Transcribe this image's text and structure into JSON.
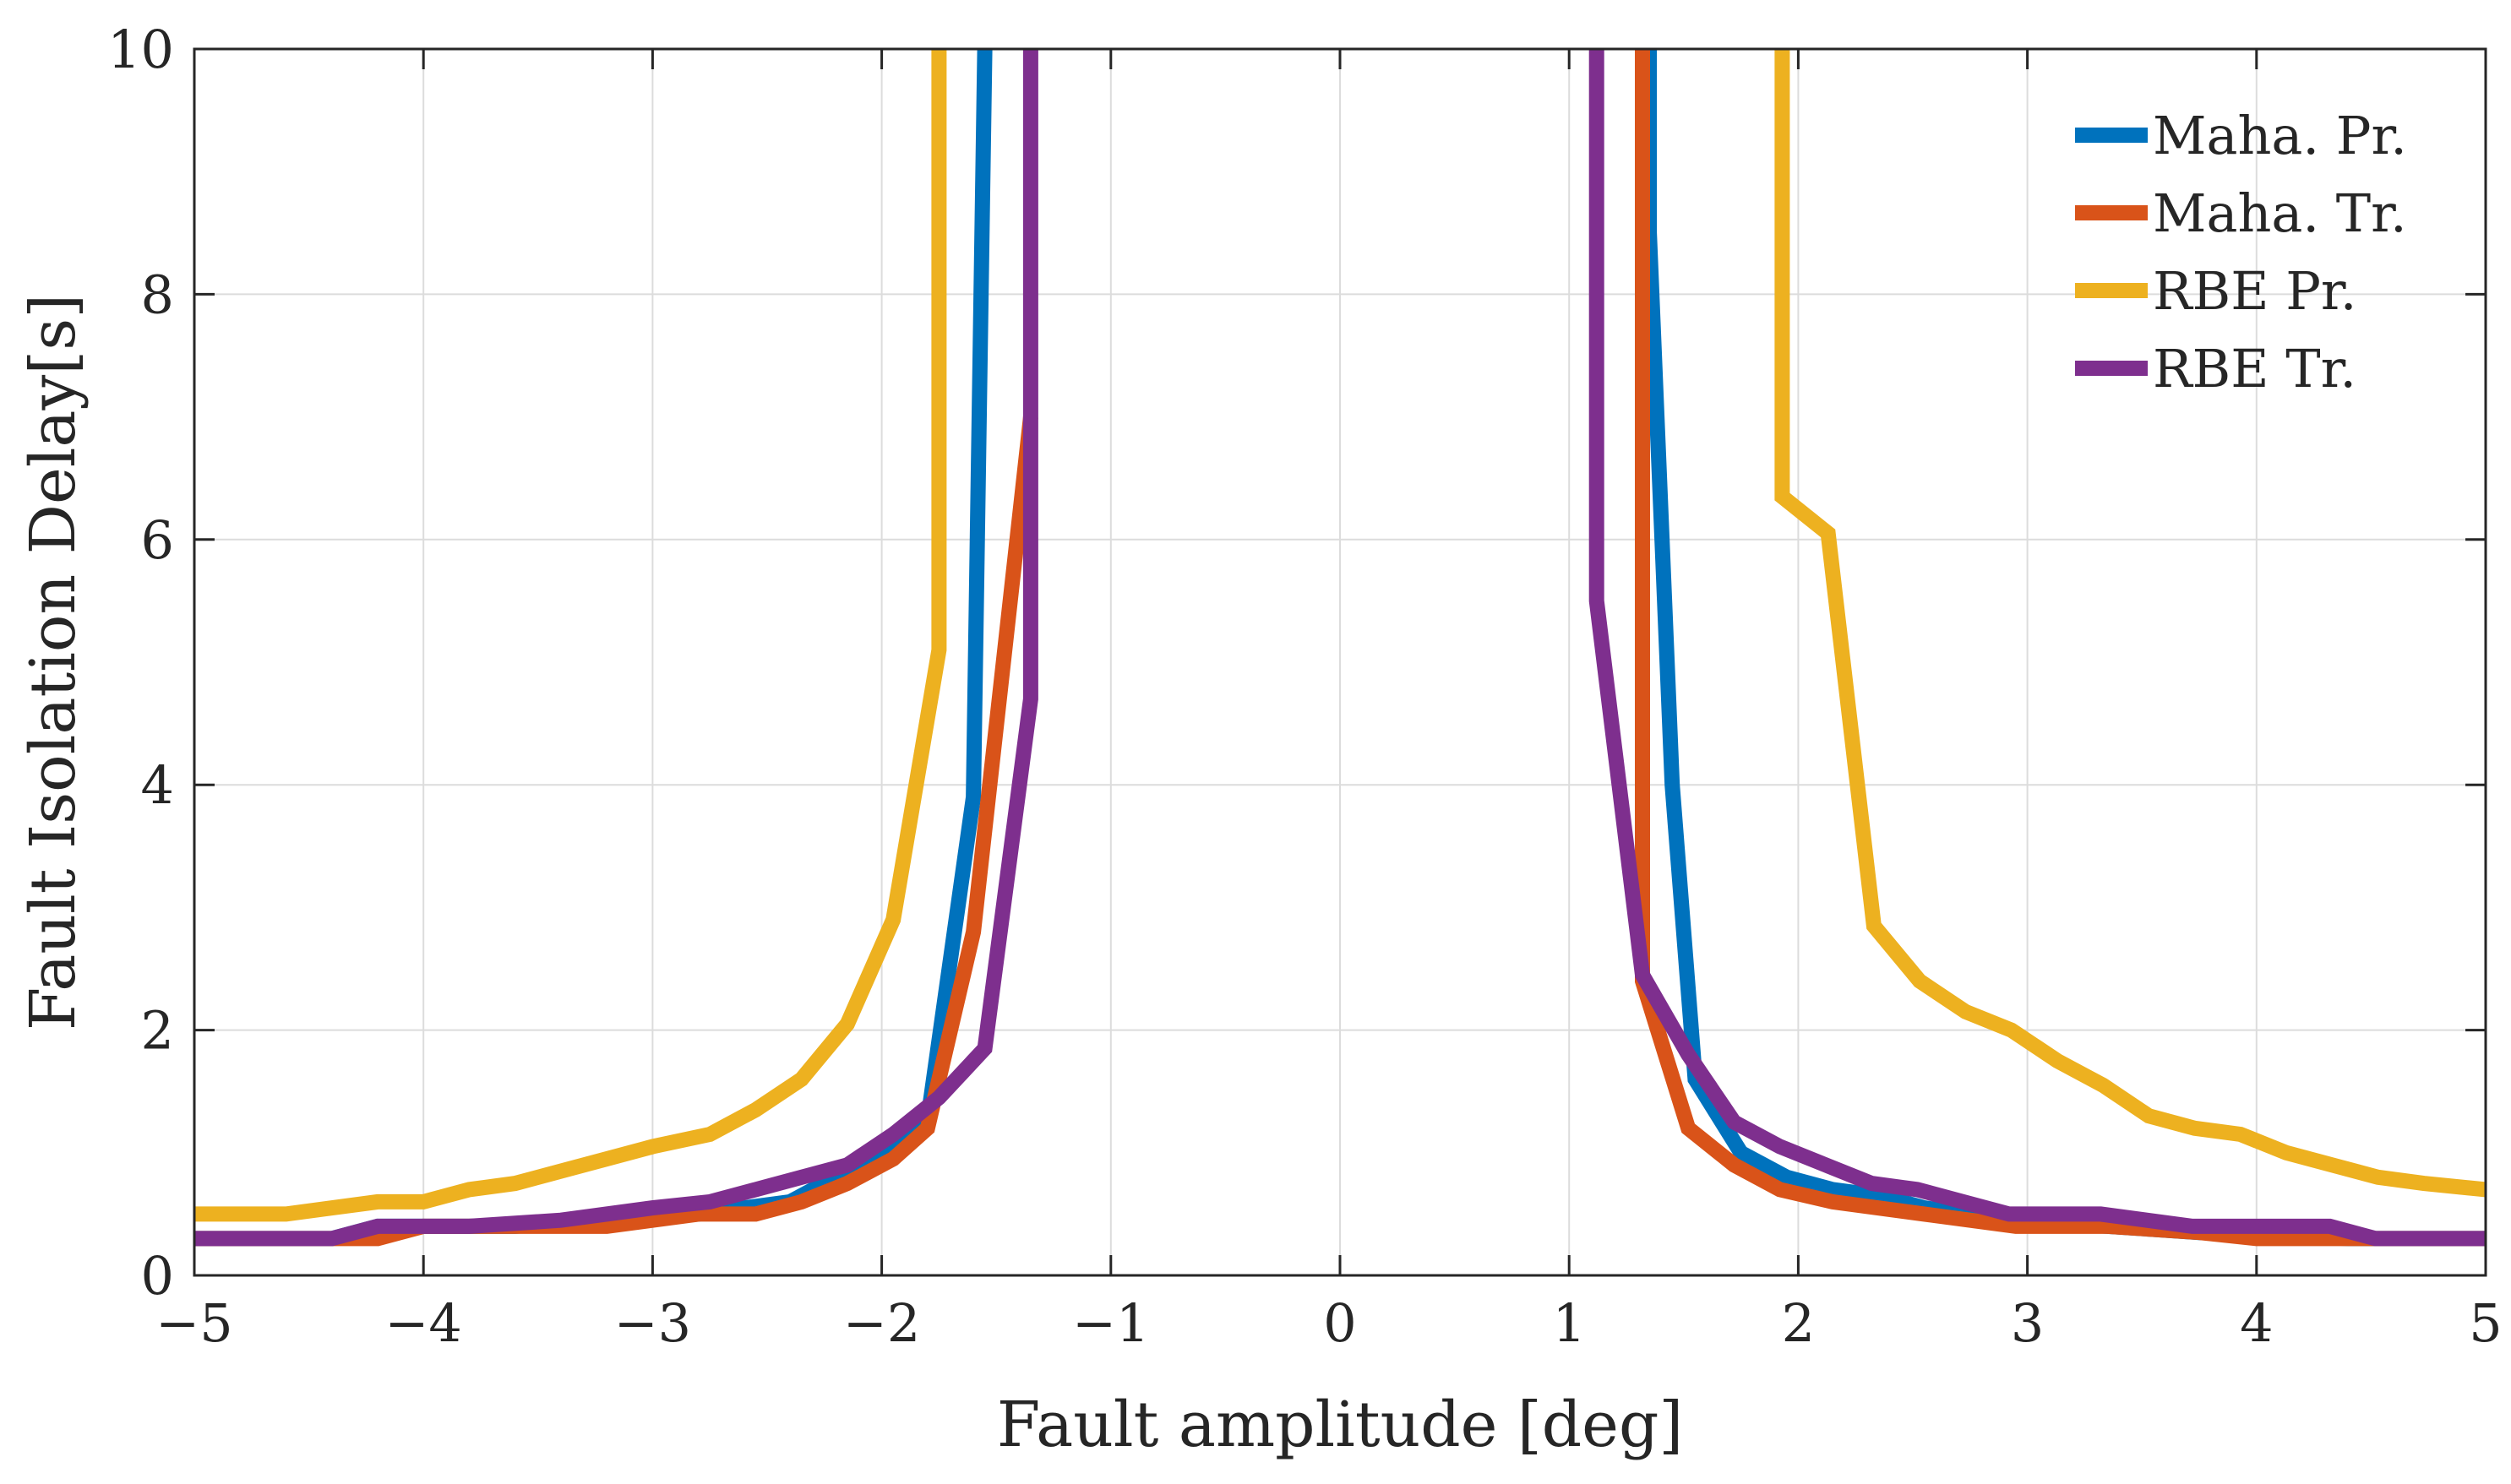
{
  "chart_data": {
    "type": "line",
    "title": "",
    "xlabel": "Fault amplitude [deg]",
    "ylabel": "Fault Isolation Delay[s]",
    "xlim": [
      -5,
      5
    ],
    "ylim": [
      0,
      10
    ],
    "xticks": [
      -5,
      -4,
      -3,
      -2,
      -1,
      0,
      1,
      2,
      3,
      4,
      5
    ],
    "xtick_labels": [
      "−5",
      "−4",
      "−3",
      "−2",
      "−1",
      "0",
      "1",
      "2",
      "3",
      "4",
      "5"
    ],
    "yticks": [
      0,
      2,
      4,
      6,
      8,
      10
    ],
    "ytick_labels": [
      "0",
      "2",
      "4",
      "6",
      "8",
      "10"
    ],
    "grid": true,
    "legend_position": "top-right",
    "series": [
      {
        "name": "Maha. Pr.",
        "color": "#0072BD",
        "segments": [
          [
            [
              -5,
              0.3
            ],
            [
              -4.4,
              0.3
            ],
            [
              -4.2,
              0.4
            ],
            [
              -3.6,
              0.4
            ],
            [
              -3.2,
              0.45
            ],
            [
              -2.8,
              0.5
            ],
            [
              -2.4,
              0.6
            ],
            [
              -2.2,
              0.8
            ],
            [
              -2.0,
              1.0
            ],
            [
              -1.8,
              1.25
            ],
            [
              -1.6,
              3.9
            ],
            [
              -1.55,
              10
            ]
          ],
          [
            [
              1.35,
              10
            ],
            [
              1.35,
              8.5
            ],
            [
              1.45,
              4.0
            ],
            [
              1.55,
              1.6
            ],
            [
              1.75,
              1.0
            ],
            [
              1.95,
              0.8
            ],
            [
              2.15,
              0.7
            ],
            [
              2.35,
              0.65
            ],
            [
              2.55,
              0.55
            ],
            [
              2.75,
              0.5
            ],
            [
              2.95,
              0.45
            ],
            [
              3.35,
              0.4
            ],
            [
              3.75,
              0.35
            ],
            [
              4.4,
              0.3
            ],
            [
              5,
              0.3
            ]
          ]
        ]
      },
      {
        "name": "Maha. Tr.",
        "color": "#D95319",
        "segments": [
          [
            [
              -5,
              0.3
            ],
            [
              -4.2,
              0.3
            ],
            [
              -4.0,
              0.4
            ],
            [
              -3.6,
              0.4
            ],
            [
              -3.2,
              0.4
            ],
            [
              -2.8,
              0.5
            ],
            [
              -2.55,
              0.5
            ],
            [
              -2.35,
              0.6
            ],
            [
              -2.15,
              0.75
            ],
            [
              -1.95,
              0.95
            ],
            [
              -1.8,
              1.2
            ],
            [
              -1.6,
              2.8
            ],
            [
              -1.35,
              7.0
            ]
          ],
          [
            [
              1.32,
              10
            ],
            [
              1.32,
              2.4
            ],
            [
              1.52,
              1.2
            ],
            [
              1.72,
              0.9
            ],
            [
              1.92,
              0.7
            ],
            [
              2.15,
              0.6
            ],
            [
              2.55,
              0.5
            ],
            [
              2.95,
              0.4
            ],
            [
              3.35,
              0.4
            ],
            [
              3.75,
              0.35
            ],
            [
              4.0,
              0.3
            ],
            [
              4.4,
              0.3
            ],
            [
              4.6,
              0.3
            ],
            [
              5,
              0.3
            ]
          ]
        ]
      },
      {
        "name": "RBE Pr.",
        "color": "#EDB120",
        "segments": [
          [
            [
              -5,
              0.5
            ],
            [
              -4.6,
              0.5
            ],
            [
              -4.2,
              0.6
            ],
            [
              -4.0,
              0.6
            ],
            [
              -3.8,
              0.7
            ],
            [
              -3.6,
              0.75
            ],
            [
              -3.4,
              0.85
            ],
            [
              -3.2,
              0.95
            ],
            [
              -3.0,
              1.05
            ],
            [
              -2.75,
              1.15
            ],
            [
              -2.55,
              1.35
            ],
            [
              -2.35,
              1.6
            ],
            [
              -2.15,
              2.05
            ],
            [
              -1.95,
              2.9
            ],
            [
              -1.75,
              5.1
            ],
            [
              -1.75,
              10
            ]
          ],
          [
            [
              1.93,
              10
            ],
            [
              1.93,
              6.35
            ],
            [
              2.13,
              6.05
            ],
            [
              2.33,
              2.85
            ],
            [
              2.53,
              2.4
            ],
            [
              2.73,
              2.15
            ],
            [
              2.93,
              2.0
            ],
            [
              3.13,
              1.75
            ],
            [
              3.33,
              1.55
            ],
            [
              3.53,
              1.3
            ],
            [
              3.73,
              1.2
            ],
            [
              3.93,
              1.15
            ],
            [
              4.13,
              1.0
            ],
            [
              4.33,
              0.9
            ],
            [
              4.53,
              0.8
            ],
            [
              4.73,
              0.75
            ],
            [
              5,
              0.7
            ]
          ]
        ]
      },
      {
        "name": "RBE Tr.",
        "color": "#7E2F8E",
        "segments": [
          [
            [
              -5,
              0.3
            ],
            [
              -4.4,
              0.3
            ],
            [
              -4.2,
              0.4
            ],
            [
              -3.8,
              0.4
            ],
            [
              -3.4,
              0.45
            ],
            [
              -3.0,
              0.55
            ],
            [
              -2.75,
              0.6
            ],
            [
              -2.55,
              0.7
            ],
            [
              -2.35,
              0.8
            ],
            [
              -2.15,
              0.9
            ],
            [
              -1.95,
              1.15
            ],
            [
              -1.75,
              1.45
            ],
            [
              -1.55,
              1.85
            ],
            [
              -1.35,
              4.7
            ],
            [
              -1.35,
              10
            ]
          ],
          [
            [
              1.12,
              10
            ],
            [
              1.12,
              5.5
            ],
            [
              1.32,
              2.45
            ],
            [
              1.52,
              1.8
            ],
            [
              1.72,
              1.25
            ],
            [
              1.92,
              1.05
            ],
            [
              2.12,
              0.9
            ],
            [
              2.32,
              0.75
            ],
            [
              2.52,
              0.7
            ],
            [
              2.72,
              0.6
            ],
            [
              2.92,
              0.5
            ],
            [
              3.32,
              0.5
            ],
            [
              3.72,
              0.4
            ],
            [
              4.32,
              0.4
            ],
            [
              4.52,
              0.3
            ],
            [
              5,
              0.3
            ]
          ]
        ]
      }
    ]
  }
}
